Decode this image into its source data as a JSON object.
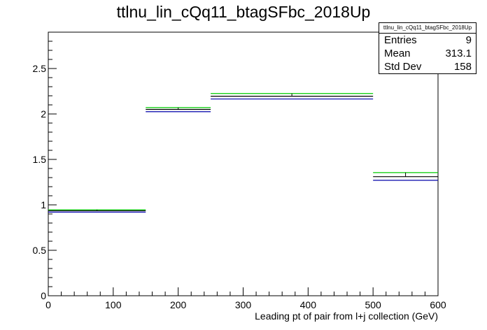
{
  "chart_data": {
    "type": "histogram",
    "title": "ttlnu_lin_cQq11_btagSFbc_2018Up",
    "xlabel": "Leading pt of pair from l+j collection (GeV)",
    "ylabel": "",
    "xlim": [
      0,
      600
    ],
    "ylim": [
      0,
      2.9
    ],
    "x_ticks": [
      "0",
      "100",
      "200",
      "300",
      "400",
      "500",
      "600"
    ],
    "y_ticks": [
      "0",
      "0.5",
      "1",
      "1.5",
      "2",
      "2.5"
    ],
    "bins": [
      [
        0,
        150
      ],
      [
        150,
        250
      ],
      [
        250,
        500
      ],
      [
        500,
        600
      ]
    ],
    "series": [
      {
        "color": "#00cc00",
        "values": [
          0.945,
          2.07,
          2.225,
          1.355
        ]
      },
      {
        "color": "#000000",
        "values": [
          0.935,
          2.05,
          2.195,
          1.31
        ]
      },
      {
        "color": "#0000aa",
        "values": [
          0.92,
          2.025,
          2.165,
          1.27
        ]
      }
    ],
    "stats": {
      "name": "ttlnu_lin_cQq11_btagSFbc_2018Up",
      "rows": [
        {
          "label": "Entries",
          "value": "9"
        },
        {
          "label": "Mean",
          "value": "313.1"
        },
        {
          "label": "Std Dev",
          "value": "158"
        }
      ]
    }
  }
}
